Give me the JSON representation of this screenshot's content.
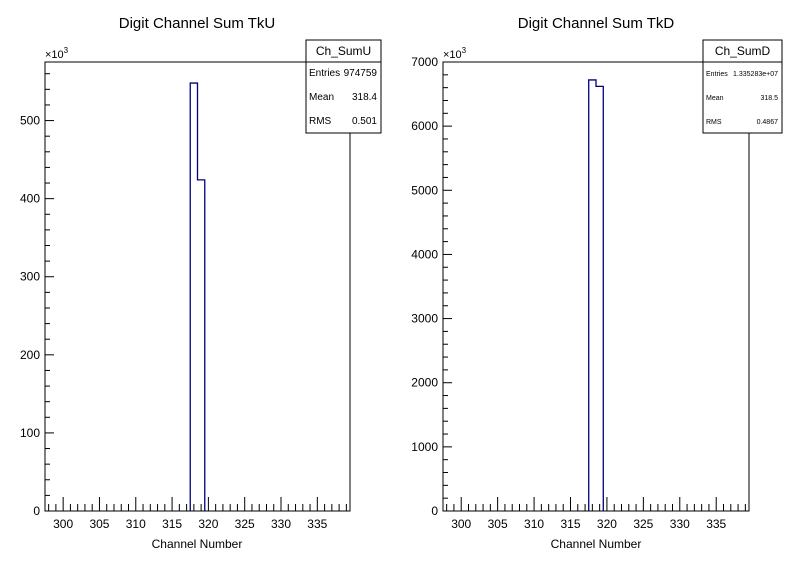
{
  "chart_data": [
    {
      "type": "bar",
      "title": "Digit Channel Sum TkU",
      "xlabel": "Channel Number",
      "ylabel": "",
      "xlim": [
        297.5,
        339.5
      ],
      "ylim": [
        0,
        575
      ],
      "xticks": [
        300,
        305,
        310,
        315,
        320,
        325,
        330,
        335
      ],
      "yticks": [
        0,
        100,
        200,
        300,
        400,
        500
      ],
      "y_multiplier": "×10",
      "y_multiplier_exp": "3",
      "bins": [
        {
          "x0": 317.5,
          "x1": 318.5,
          "y": 548
        },
        {
          "x0": 318.5,
          "x1": 319.5,
          "y": 424
        }
      ],
      "line_color": "#00007f",
      "stats": {
        "name": "Ch_SumU",
        "rows": [
          {
            "label": "Entries",
            "value": "974759"
          },
          {
            "label": "Mean",
            "value": "318.4"
          },
          {
            "label": "RMS",
            "value": "0.501"
          }
        ]
      }
    },
    {
      "type": "bar",
      "title": "Digit Channel Sum TkD",
      "xlabel": "Channel Number",
      "ylabel": "",
      "xlim": [
        297.5,
        339.5
      ],
      "ylim": [
        0,
        7000
      ],
      "xticks": [
        300,
        305,
        310,
        315,
        320,
        325,
        330,
        335
      ],
      "yticks": [
        0,
        1000,
        2000,
        3000,
        4000,
        5000,
        6000,
        7000
      ],
      "y_multiplier": "×10",
      "y_multiplier_exp": "3",
      "bins": [
        {
          "x0": 317.5,
          "x1": 318.5,
          "y": 6720
        },
        {
          "x0": 318.5,
          "x1": 319.5,
          "y": 6620
        }
      ],
      "line_color": "#00007f",
      "stats": {
        "name": "Ch_SumD",
        "rows": [
          {
            "label": "Entries",
            "value": "1.335283e+07"
          },
          {
            "label": "Mean",
            "value": "318.5"
          },
          {
            "label": "RMS",
            "value": "0.4867"
          }
        ]
      }
    }
  ]
}
